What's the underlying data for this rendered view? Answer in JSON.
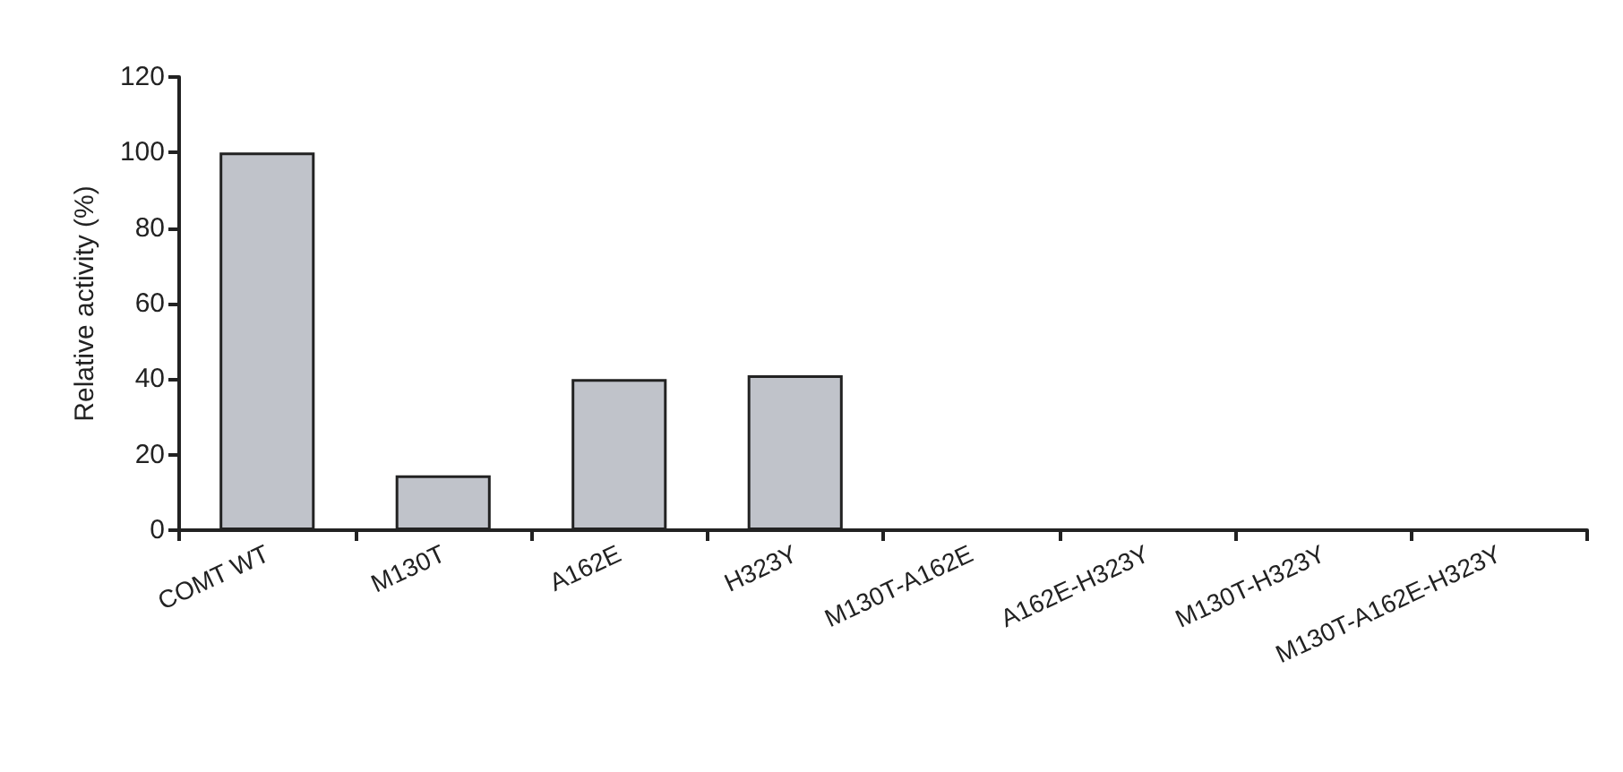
{
  "chart_data": {
    "type": "bar",
    "ylabel": "Relative activity (%)",
    "categories": [
      "COMT WT",
      "M130T",
      "A162E",
      "H323Y",
      "M130T-A162E",
      "A162E-H323Y",
      "M130T-H323Y",
      "M130T-A162E-H323Y"
    ],
    "values": [
      100,
      14.5,
      40,
      41,
      0,
      0,
      0,
      0
    ],
    "color": "#c0c3ca",
    "ylim": [
      0,
      120
    ],
    "yticks": [
      0,
      20,
      40,
      60,
      80,
      100,
      120
    ],
    "grid": false
  }
}
